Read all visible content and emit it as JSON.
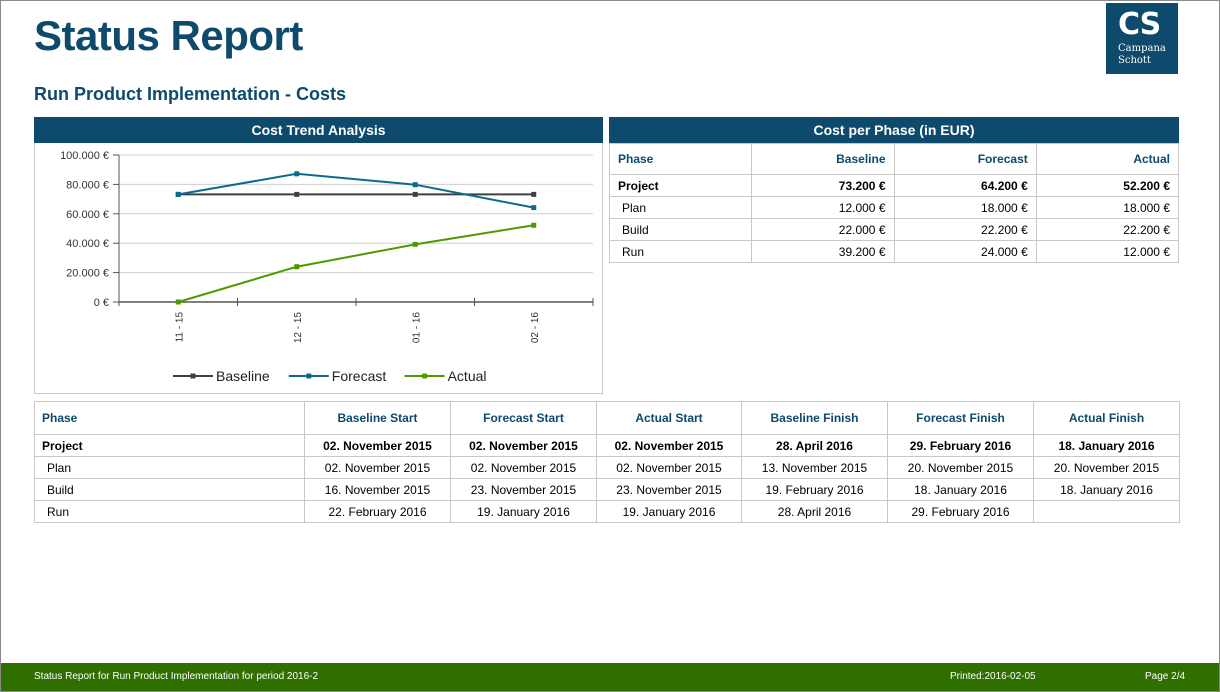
{
  "header": {
    "title": "Status Report",
    "subtitle": "Run Product Implementation - Costs"
  },
  "logo": {
    "mark": "CS",
    "line1": "Campana",
    "line2": "Schott",
    "bg_color": "#0d4a6b"
  },
  "colors": {
    "brand": "#0d4a6b",
    "footer": "#2f6f00",
    "baseline": "#404040",
    "forecast": "#0d6a8c",
    "actual": "#4d9a00"
  },
  "cost_trend": {
    "heading": "Cost Trend Analysis"
  },
  "chart_data": {
    "type": "line",
    "title": "Cost Trend Analysis",
    "categories": [
      "11 - 15",
      "12 - 15",
      "01 - 16",
      "02 - 16"
    ],
    "y_ticks": [
      "0 €",
      "20.000 €",
      "40.000 €",
      "60.000 €",
      "80.000 €",
      "100.000 €"
    ],
    "ylim": [
      0,
      100000
    ],
    "grid": true,
    "legend_position": "bottom",
    "series": [
      {
        "name": "Baseline",
        "values": [
          73200,
          73200,
          73200,
          73200
        ],
        "color": "#404040"
      },
      {
        "name": "Forecast",
        "values": [
          73200,
          87200,
          79800,
          64200
        ],
        "color": "#0d6a8c"
      },
      {
        "name": "Actual",
        "values": [
          0,
          24000,
          39200,
          52200
        ],
        "color": "#4d9a00"
      }
    ]
  },
  "cost_per_phase": {
    "heading": "Cost per Phase (in EUR)",
    "headers": [
      "Phase",
      "Baseline",
      "Forecast",
      "Actual"
    ],
    "rows": [
      [
        "Project",
        "73.200 €",
        "64.200 €",
        "52.200 €"
      ],
      [
        "Plan",
        "12.000 €",
        "18.000 €",
        "18.000 €"
      ],
      [
        "Build",
        "22.000 €",
        "22.200 €",
        "22.200 €"
      ],
      [
        "Run",
        "39.200 €",
        "24.000 €",
        "12.000 €"
      ]
    ]
  },
  "dates": {
    "headers": [
      "Phase",
      "Baseline Start",
      "Forecast Start",
      "Actual Start",
      "Baseline Finish",
      "Forecast Finish",
      "Actual Finish"
    ],
    "rows": [
      [
        "Project",
        "02. November 2015",
        "02. November 2015",
        "02. November 2015",
        "28. April 2016",
        "29. February 2016",
        "18. January 2016"
      ],
      [
        "Plan",
        "02. November 2015",
        "02. November 2015",
        "02. November 2015",
        "13. November 2015",
        "20. November 2015",
        "20. November 2015"
      ],
      [
        "Build",
        "16. November 2015",
        "23. November 2015",
        "23. November 2015",
        "19. February 2016",
        "18. January 2016",
        "18. January 2016"
      ],
      [
        "Run",
        "22. February 2016",
        "19. January 2016",
        "19. January 2016",
        "28. April 2016",
        "29. February 2016",
        ""
      ]
    ]
  },
  "footer": {
    "left": "Status Report for Run Product Implementation for period 2016-2",
    "printed": "Printed:2016-02-05",
    "page": "Page 2/4"
  }
}
